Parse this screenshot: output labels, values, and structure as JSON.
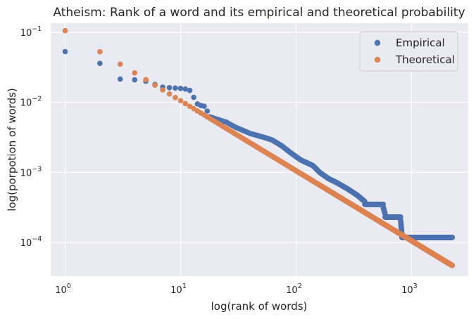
{
  "chart_data": {
    "type": "scatter",
    "title": "Atheism: Rank of a word and its empirical and theoretical probability",
    "xlabel": "log(rank of words)",
    "ylabel": "log(porpotion of words)",
    "xscale": "log",
    "yscale": "log",
    "xlim": [
      0.75,
      3100
    ],
    "ylim": [
      3.3e-05,
      0.135
    ],
    "xticks": [
      {
        "value": 1,
        "exp": "0"
      },
      {
        "value": 10,
        "exp": "1"
      },
      {
        "value": 100,
        "exp": "2"
      },
      {
        "value": 1000,
        "exp": "3"
      }
    ],
    "yticks": [
      {
        "value": 0.0001,
        "exp": "−4"
      },
      {
        "value": 0.001,
        "exp": "−3"
      },
      {
        "value": 0.01,
        "exp": "−2"
      },
      {
        "value": 0.1,
        "exp": "−1"
      }
    ],
    "tick_base": "10",
    "grid": true,
    "legend": "top-right",
    "n_words": 2250,
    "series": [
      {
        "name": "Empirical",
        "color": "#4c72b0",
        "points": [
          [
            1,
            0.053
          ],
          [
            2,
            0.036
          ],
          [
            3,
            0.0215
          ],
          [
            4,
            0.021
          ],
          [
            5,
            0.02
          ],
          [
            6,
            0.018
          ],
          [
            7,
            0.0165
          ],
          [
            8,
            0.0162
          ],
          [
            9,
            0.016
          ],
          [
            10,
            0.0158
          ],
          [
            11,
            0.0155
          ],
          [
            12,
            0.0148
          ],
          [
            13,
            0.0118
          ],
          [
            14,
            0.0095
          ],
          [
            15,
            0.009
          ],
          [
            16,
            0.0088
          ],
          [
            17,
            0.0075
          ]
        ],
        "tail_anchors": [
          [
            17,
            0.0075
          ],
          [
            18,
            0.0062
          ],
          [
            25,
            0.0052
          ],
          [
            30,
            0.0044
          ],
          [
            40,
            0.0036
          ],
          [
            55,
            0.0031
          ],
          [
            62,
            0.0029
          ],
          [
            75,
            0.0024
          ],
          [
            90,
            0.0019
          ],
          [
            110,
            0.0015
          ],
          [
            140,
            0.00125
          ],
          [
            160,
            0.001
          ],
          [
            190,
            0.00082
          ],
          [
            230,
            0.0007
          ],
          [
            280,
            0.00058
          ],
          [
            340,
            0.00047
          ],
          [
            420,
            0.00035
          ],
          [
            560,
            0.00035
          ],
          [
            600,
            0.00023
          ],
          [
            800,
            0.00023
          ],
          [
            830,
            0.000118
          ],
          [
            2250,
            0.000118
          ]
        ],
        "tail_levels": [
          0.00035,
          0.00023,
          0.000118
        ]
      },
      {
        "name": "Theoretical",
        "color": "#dd8452",
        "c": 0.1055,
        "exponent": 1
      }
    ]
  }
}
